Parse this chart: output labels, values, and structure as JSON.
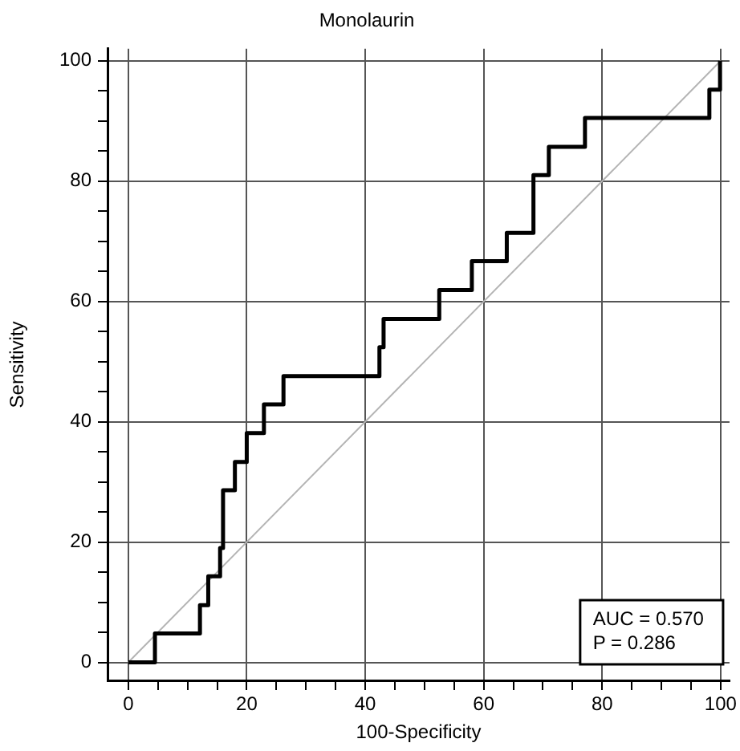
{
  "chart_data": {
    "type": "step",
    "title": "Monolaurin",
    "xlabel": "100-Specificity",
    "ylabel": "Sensitivity",
    "xlim": [
      -3.5,
      101.5
    ],
    "ylim": [
      -3,
      102
    ],
    "xticks": [
      0,
      {
        "value": 5,
        "label": null
      },
      {
        "value": 10,
        "label": null
      },
      {
        "value": 15,
        "label": null
      },
      20,
      {
        "value": 25,
        "label": null
      },
      {
        "value": 30,
        "label": null
      },
      {
        "value": 35,
        "label": null
      },
      40,
      {
        "value": 45,
        "label": null
      },
      {
        "value": 50,
        "label": null
      },
      {
        "value": 55,
        "label": null
      },
      60,
      {
        "value": 65,
        "label": null
      },
      {
        "value": 70,
        "label": null
      },
      {
        "value": 75,
        "label": null
      },
      80,
      {
        "value": 85,
        "label": null
      },
      {
        "value": 90,
        "label": null
      },
      {
        "value": 95,
        "label": null
      },
      100
    ],
    "yticks": [
      0,
      {
        "value": 5,
        "label": null
      },
      {
        "value": 10,
        "label": null
      },
      {
        "value": 15,
        "label": null
      },
      20,
      {
        "value": 25,
        "label": null
      },
      {
        "value": 30,
        "label": null
      },
      {
        "value": 35,
        "label": null
      },
      40,
      {
        "value": 45,
        "label": null
      },
      {
        "value": 50,
        "label": null
      },
      {
        "value": 55,
        "label": null
      },
      60,
      {
        "value": 65,
        "label": null
      },
      {
        "value": 70,
        "label": null
      },
      {
        "value": 75,
        "label": null
      },
      80,
      {
        "value": 85,
        "label": null
      },
      {
        "value": 90,
        "label": null
      },
      {
        "value": 95,
        "label": null
      },
      100
    ],
    "grid": true,
    "legend": false,
    "series": [
      {
        "color": "#000000",
        "x": [
          0,
          4.5,
          12.1,
          13.5,
          15.5,
          16.0,
          18.0,
          20.0,
          22.9,
          26.2,
          42.4,
          43.1,
          52.5,
          58.0,
          63.9,
          68.4,
          71.0,
          77.1,
          98.1,
          99.9
        ],
        "values": [
          0,
          4.8,
          9.5,
          14.3,
          19,
          28.6,
          33.3,
          38.1,
          42.9,
          47.6,
          52.4,
          57.1,
          61.9,
          66.7,
          71.4,
          81,
          85.7,
          90.5,
          95.2,
          100
        ]
      },
      {
        "type": "line",
        "color": "#b4b4b4",
        "x": [
          0,
          100
        ],
        "values": [
          0,
          100
        ]
      }
    ],
    "annotations": [
      "AUC = 0.570",
      "P = 0.286"
    ]
  }
}
